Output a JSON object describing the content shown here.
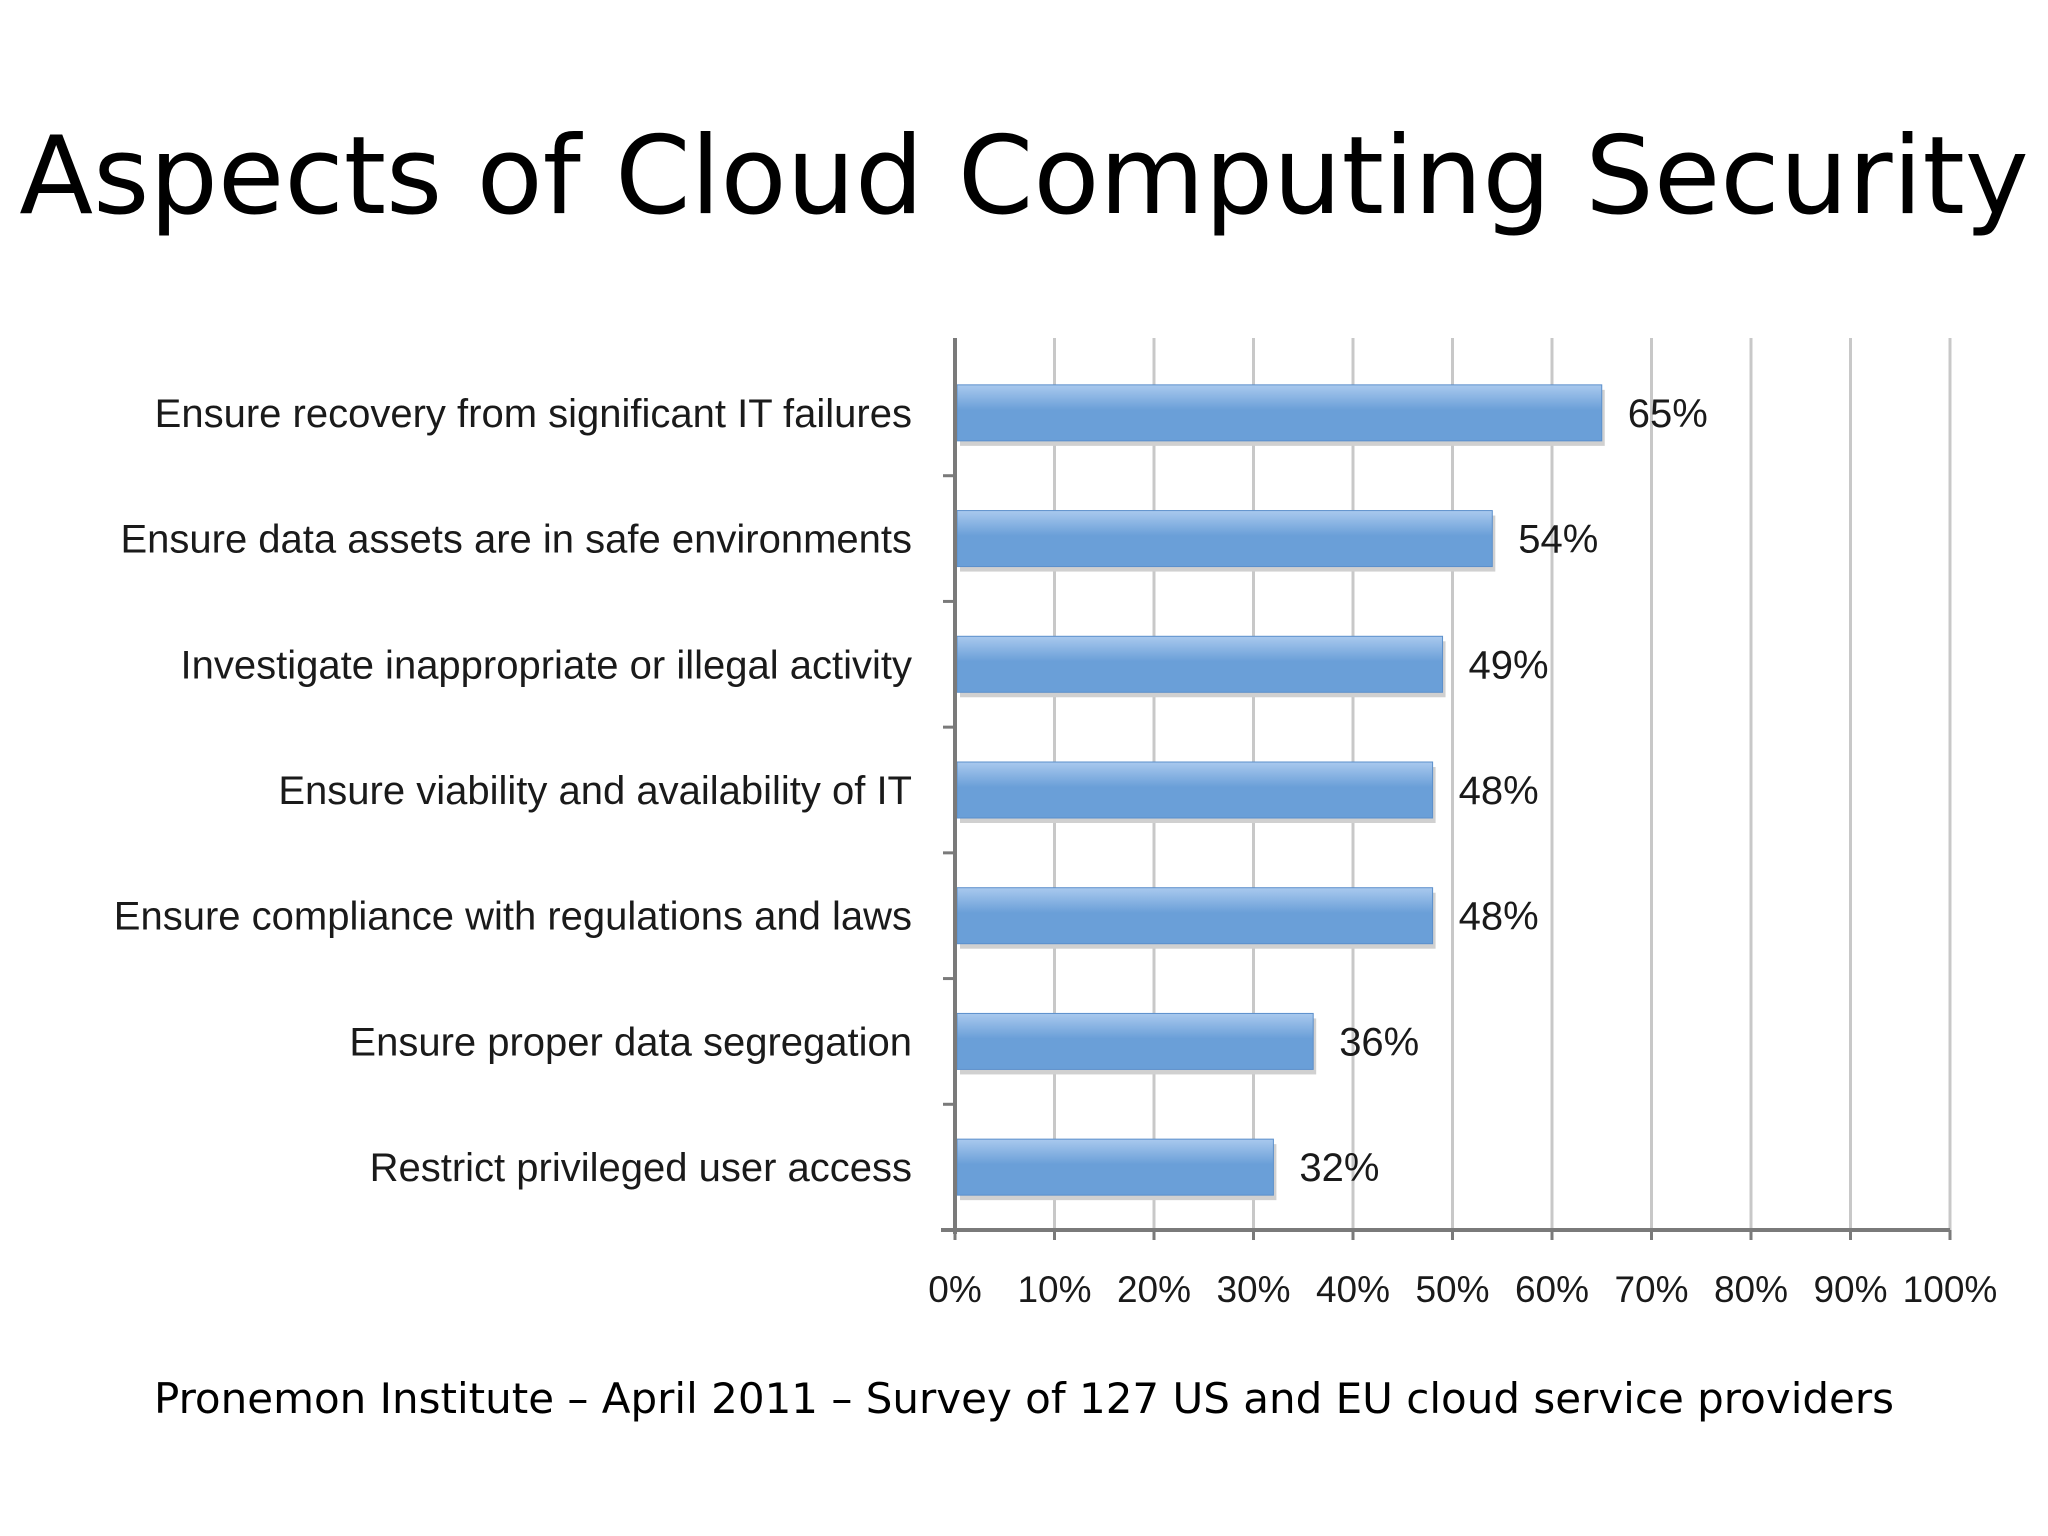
{
  "slide": {
    "title": "Aspects of Cloud Computing Security",
    "footer": "Pronemon Institute – April 2011 – Survey of 127 US and EU cloud service providers"
  },
  "chart_data": {
    "type": "bar",
    "orientation": "horizontal",
    "categories": [
      "Ensure recovery from significant IT failures",
      "Ensure data assets are in safe environments",
      "Investigate inappropriate or illegal activity",
      "Ensure viability and availability of IT",
      "Ensure compliance with regulations and laws",
      "Ensure proper data segregation",
      "Restrict privileged user access"
    ],
    "values": [
      65,
      54,
      49,
      48,
      48,
      36,
      32
    ],
    "value_labels": [
      "65%",
      "54%",
      "49%",
      "48%",
      "48%",
      "36%",
      "32%"
    ],
    "xlim": [
      0,
      100
    ],
    "x_ticks": [
      "0%",
      "10%",
      "20%",
      "30%",
      "40%",
      "50%",
      "60%",
      "70%",
      "80%",
      "90%",
      "100%"
    ],
    "grid": true,
    "legend": "none",
    "colors": {
      "bar": "#6a9fd8",
      "bar_light": "#a9c9ee",
      "grid": "#c8c8c8",
      "axis": "#7a7a7a"
    }
  }
}
